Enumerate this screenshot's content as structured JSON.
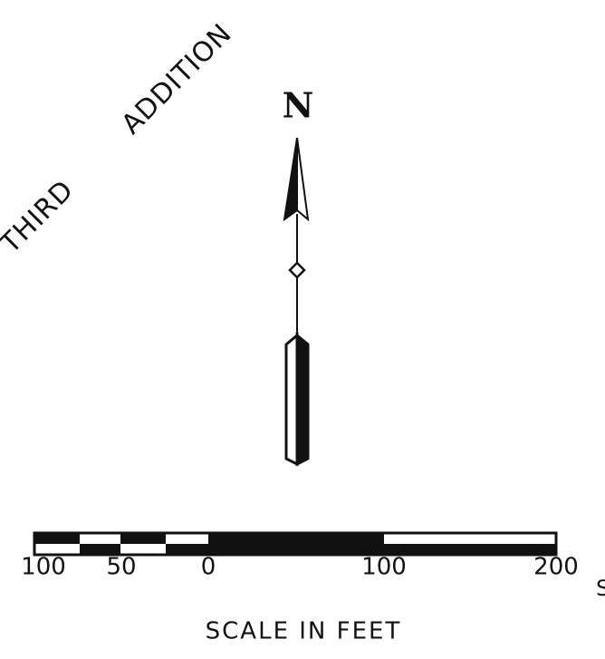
{
  "labels": [
    "THIRD",
    "ADDITION"
  ],
  "north_arrow": {
    "label": "N"
  },
  "scale": {
    "ticks": [
      "100",
      "50",
      "0",
      "100",
      "200"
    ],
    "title": "SCALE IN FEET",
    "edge_label": "S"
  }
}
